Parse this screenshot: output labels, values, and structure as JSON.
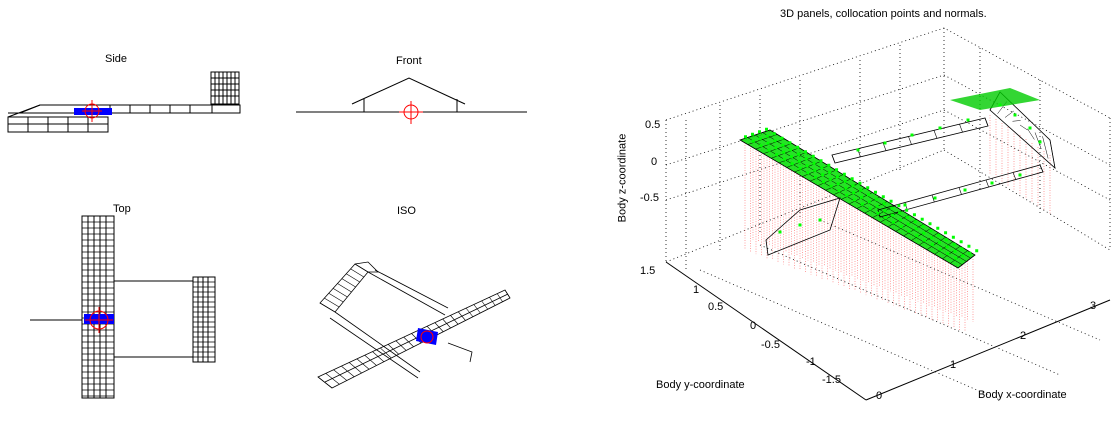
{
  "views": {
    "side": "Side",
    "front": "Front",
    "top": "Top",
    "iso": "ISO"
  },
  "plot3d": {
    "title": "3D panels, collocation points and normals.",
    "zlabel": "Body z-coordinate",
    "ylabel": "Body y-coordinate",
    "xlabel": "Body x-coordinate",
    "zticks": [
      "0.5",
      "0",
      "-0.5"
    ],
    "yticks": [
      "1.5",
      "1",
      "0.5",
      "0",
      "-0.5",
      "-1",
      "-1.5"
    ],
    "xticks": [
      "0",
      "1",
      "2",
      "3"
    ]
  },
  "colors": {
    "panel_line": "#000000",
    "reference_marker": "#ff0000",
    "control_surface": "#0000ff",
    "collocation_points": "#00ff00",
    "normals": "#ff6666",
    "grid": "#000000"
  }
}
